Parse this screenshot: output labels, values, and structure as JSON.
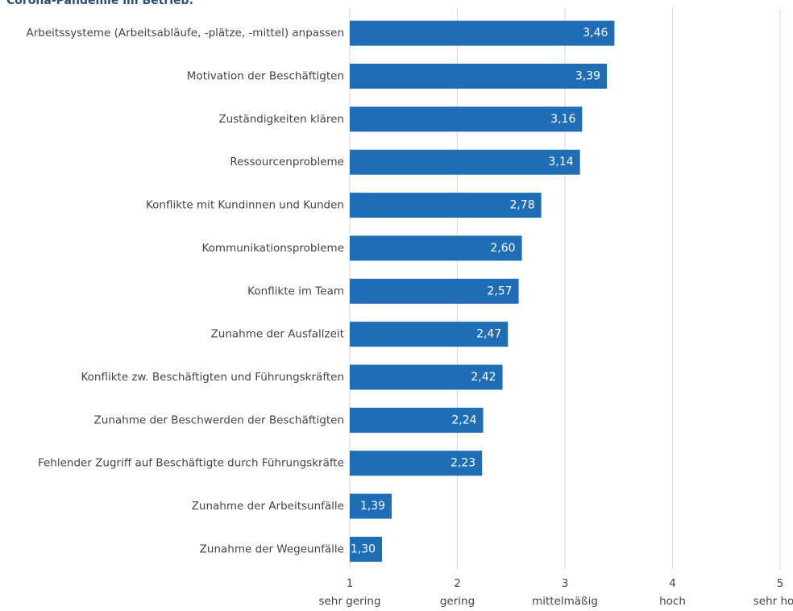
{
  "chart_data": {
    "type": "bar",
    "orientation": "horizontal",
    "title": "Corona-Pandemie im Betrieb:",
    "categories": [
      "Arbeitssysteme (Arbeitsabläufe, -plätze, -mittel) anpassen",
      "Motivation der Beschäftigten",
      "Zuständigkeiten klären",
      "Ressourcenprobleme",
      "Konflikte mit Kundinnen und Kunden",
      "Kommunikationsprobleme",
      "Konflikte im Team",
      "Zunahme der Ausfallzeit",
      "Konflikte zw. Beschäftigten und Führungskräften",
      "Zunahme der Beschwerden der Beschäftigten",
      "Fehlender Zugriff auf Beschäftigte durch Führungskräfte",
      "Zunahme der Arbeitsunfälle",
      "Zunahme der Wegeunfälle"
    ],
    "values": [
      3.46,
      3.39,
      3.16,
      3.14,
      2.78,
      2.6,
      2.57,
      2.47,
      2.42,
      2.24,
      2.23,
      1.39,
      1.3
    ],
    "value_labels": [
      "3,46",
      "3,39",
      "3,16",
      "3,14",
      "2,78",
      "2,60",
      "2,57",
      "2,47",
      "2,42",
      "2,24",
      "2,23",
      "1,39",
      "1,30"
    ],
    "color": "#1f6db5",
    "xlim": [
      1,
      5
    ],
    "xticks": [
      1,
      2,
      3,
      4,
      5
    ],
    "xtick_names": [
      "sehr gering",
      "gering",
      "mittelmäßig",
      "hoch",
      "sehr hoch"
    ],
    "grid": true
  }
}
